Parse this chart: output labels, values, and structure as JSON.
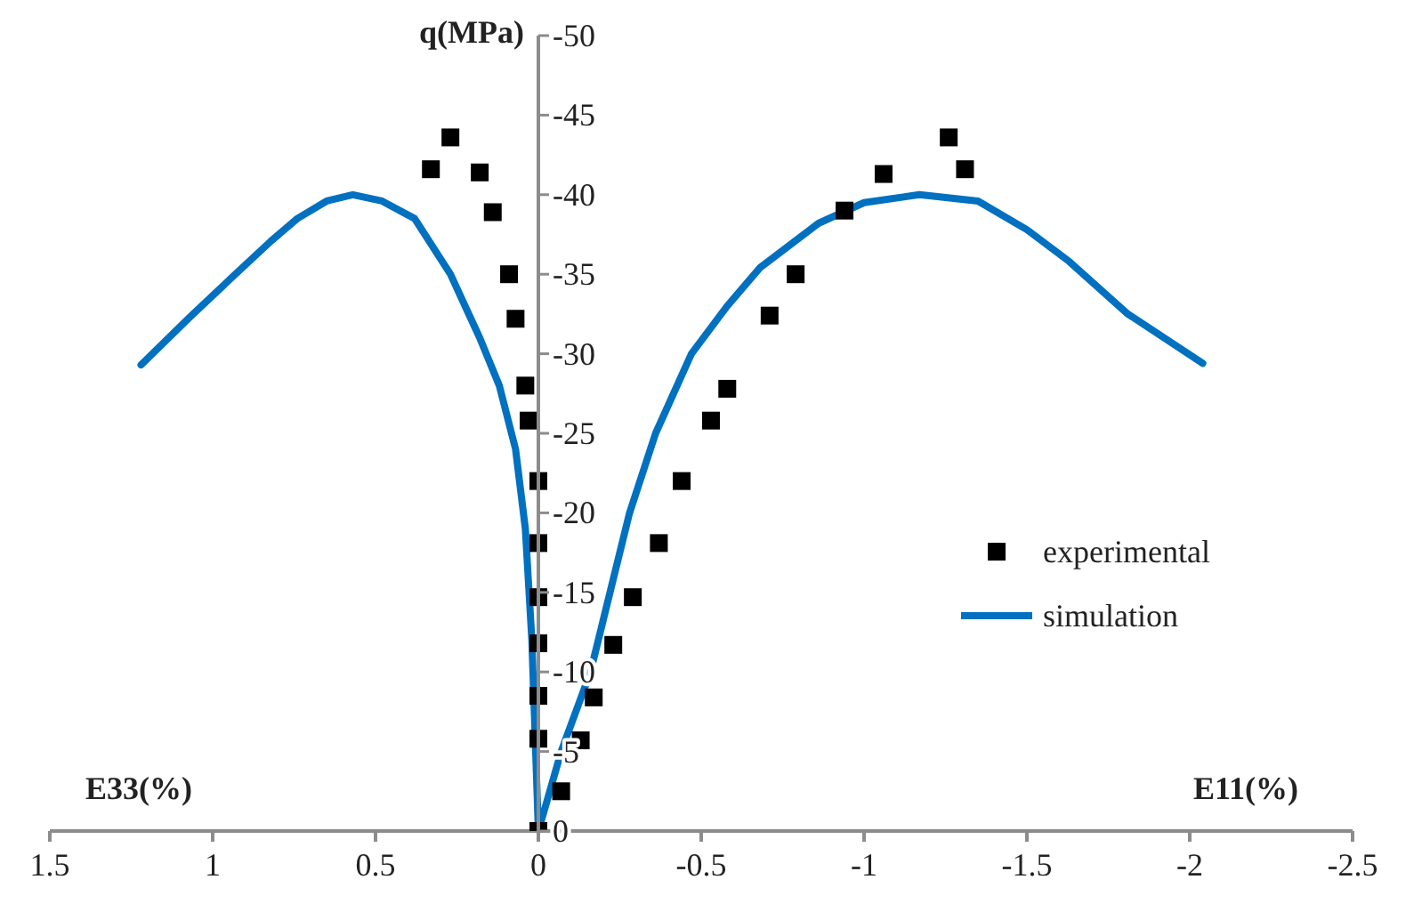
{
  "chart_data": {
    "type": "scatter",
    "xlabel": "E11(%)",
    "ylabel": "q(MPa)",
    "annotations": [
      "E33(%)"
    ],
    "xlim": [
      1.5,
      -2.5
    ],
    "xticks": [
      1.5,
      1,
      0.5,
      0,
      -0.5,
      -1,
      -1.5,
      -2,
      -2.5
    ],
    "ylim": [
      0,
      -50
    ],
    "yticks": [
      0,
      -5,
      -10,
      -15,
      -20,
      -25,
      -30,
      -35,
      -40,
      -45,
      -50
    ],
    "grid": false,
    "legend": "right",
    "series": [
      {
        "name": "experimental",
        "marker": "square",
        "color": "#000000",
        "x": [
          0.33,
          0.27,
          0.18,
          0.14,
          0.09,
          0.07,
          0.04,
          0.03,
          0.0,
          0.0,
          0.0,
          0.0,
          0.0,
          0.0,
          0.0,
          -0.07,
          -0.13,
          -0.17,
          -0.23,
          -0.29,
          -0.37,
          -0.44,
          -0.53,
          -0.58,
          -0.71,
          -0.79,
          -0.94,
          -1.06,
          -1.26,
          -1.31
        ],
        "values": [
          -41.6,
          -43.6,
          -41.4,
          -38.9,
          -35,
          -32.2,
          -28,
          -25.8,
          -22,
          -18.1,
          -14.7,
          -11.8,
          -8.5,
          -5.8,
          0,
          -2.5,
          -5.7,
          -8.4,
          -11.7,
          -14.7,
          -18.1,
          -22,
          -25.8,
          -27.8,
          -32.4,
          -35,
          -39,
          -41.3,
          -43.6,
          -41.6
        ]
      },
      {
        "name": "simulation",
        "type": "line",
        "marker": "none",
        "color": "#0070c0",
        "x": [
          1.22,
          1.07,
          0.92,
          0.82,
          0.74,
          0.65,
          0.57,
          0.48,
          0.38,
          0.27,
          0.18,
          0.12,
          0.07,
          0.04,
          0.02,
          0.01,
          0,
          -0.07,
          -0.16,
          -0.22,
          -0.28,
          -0.36,
          -0.47,
          -0.58,
          -0.68,
          -0.86,
          -1.0,
          -1.17,
          -1.35,
          -1.5,
          -1.63,
          -1.81,
          -2.04
        ],
        "values": [
          -29.3,
          -32.3,
          -35.2,
          -37.1,
          -38.5,
          -39.6,
          -40,
          -39.6,
          -38.5,
          -35,
          -31,
          -28,
          -24,
          -19,
          -12,
          -6,
          0,
          -5,
          -10,
          -15,
          -20,
          -25,
          -30,
          -33,
          -35.4,
          -38.2,
          -39.5,
          -40,
          -39.6,
          -37.8,
          -35.8,
          -32.5,
          -29.4
        ]
      }
    ]
  }
}
